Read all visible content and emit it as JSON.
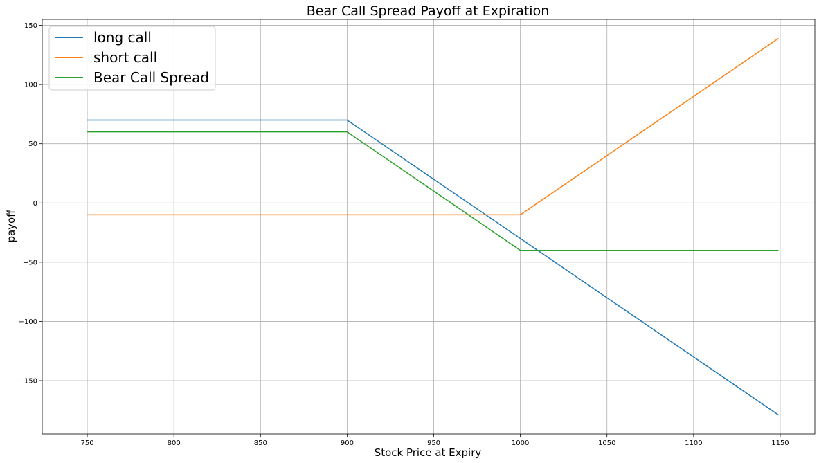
{
  "chart_data": {
    "type": "line",
    "title": "Bear Call Spread Payoff at Expiration",
    "xlabel": "Stock Price at Expiry",
    "ylabel": "payoff",
    "xlim": [
      724,
      1170
    ],
    "ylim": [
      -195,
      155
    ],
    "xticks": [
      750,
      800,
      850,
      900,
      950,
      1000,
      1050,
      1100,
      1150
    ],
    "yticks": [
      150,
      100,
      50,
      0,
      -50,
      -100,
      -150
    ],
    "ytick_labels": [
      "150",
      "100",
      "50",
      "0",
      "−50",
      "−100",
      "−150"
    ],
    "grid": true,
    "legend_position": "top-left",
    "series": [
      {
        "name": "long call",
        "color": "#1f77b4",
        "x": [
          750,
          900,
          1149
        ],
        "y": [
          70,
          70,
          -179
        ]
      },
      {
        "name": "short call",
        "color": "#ff7f0e",
        "x": [
          750,
          1000,
          1149
        ],
        "y": [
          -10,
          -10,
          139
        ]
      },
      {
        "name": "Bear Call Spread",
        "color": "#2ca02c",
        "x": [
          750,
          900,
          1000,
          1149
        ],
        "y": [
          60,
          60,
          -40,
          -40
        ]
      }
    ]
  }
}
